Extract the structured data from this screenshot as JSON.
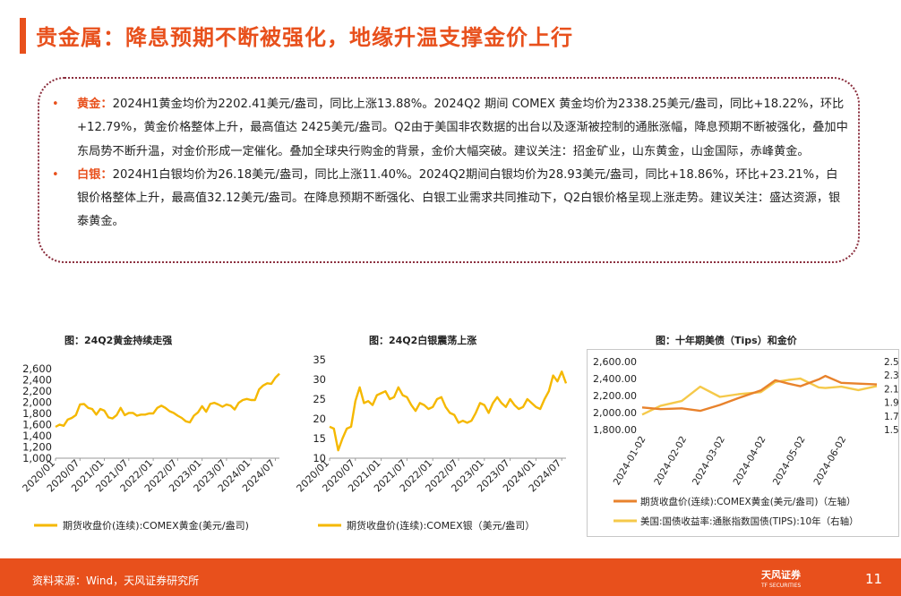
{
  "page": {
    "title": "贵金属：降息预期不断被强化，地缘升温支撑金价上行",
    "page_number": "11"
  },
  "bullets": [
    {
      "key": "黄金：",
      "text": "2024H1黄金均价为2202.41美元/盎司，同比上涨13.88%。2024Q2 期间 COMEX 黄金均价为2338.25美元/盎司，同比+18.22%，环比+12.79%，黄金价格整体上升，最高值达 2425美元/盎司。Q2由于美国非农数据的出台以及逐渐被控制的通胀涨幅，降息预期不断被强化，叠加中东局势不断升温，对金价形成一定催化。叠加全球央行购金的背景，金价大幅突破。建议关注：招金矿业，山东黄金，山金国际，赤峰黄金。"
    },
    {
      "key": "白银：",
      "text": "2024H1白银均价为26.18美元/盎司，同比上涨11.40%。2024Q2期间白银均价为28.93美元/盎司，同比+18.86%，环比+23.21%，白银价格整体上升，最高值32.12美元/盎司。在降息预期不断强化、白银工业需求共同推动下，Q2白银价格呈现上涨走势。建议关注：盛达资源，银泰黄金。"
    }
  ],
  "footer": {
    "source": "资料来源：Wind，天风证券研究所",
    "logo": "天风证券",
    "logo_en": "TF SECURITIES"
  },
  "chart_data": [
    {
      "type": "line",
      "title": "图：24Q2黄金持续走强",
      "x_tick_labels": [
        "2020/01",
        "2020/07",
        "2021/01",
        "2021/07",
        "2022/01",
        "2022/07",
        "2023/01",
        "2023/07",
        "2024/01",
        "2024/07"
      ],
      "y_tick_labels": [
        "1,000",
        "1,200",
        "1,400",
        "1,600",
        "1,800",
        "2,000",
        "2,200",
        "2,400",
        "2,600"
      ],
      "ylim": [
        1000,
        2600
      ],
      "series": [
        {
          "name": "期货收盘价(连续):COMEX黄金(美元/盎司)",
          "color": "#f5b800",
          "x": [
            "2020/01",
            "2020/02",
            "2020/03",
            "2020/04",
            "2020/05",
            "2020/06",
            "2020/07",
            "2020/08",
            "2020/09",
            "2020/10",
            "2020/11",
            "2020/12",
            "2021/01",
            "2021/02",
            "2021/03",
            "2021/04",
            "2021/05",
            "2021/06",
            "2021/07",
            "2021/08",
            "2021/09",
            "2021/10",
            "2021/11",
            "2021/12",
            "2022/01",
            "2022/02",
            "2022/03",
            "2022/04",
            "2022/05",
            "2022/06",
            "2022/07",
            "2022/08",
            "2022/09",
            "2022/10",
            "2022/11",
            "2022/12",
            "2023/01",
            "2023/02",
            "2023/03",
            "2023/04",
            "2023/05",
            "2023/06",
            "2023/07",
            "2023/08",
            "2023/09",
            "2023/10",
            "2023/11",
            "2023/12",
            "2024/01",
            "2024/02",
            "2024/03",
            "2024/04",
            "2024/05",
            "2024/06",
            "2024/07",
            "2024/08"
          ],
          "values": [
            1560,
            1600,
            1580,
            1690,
            1720,
            1770,
            1960,
            1970,
            1900,
            1880,
            1780,
            1880,
            1850,
            1730,
            1710,
            1770,
            1900,
            1770,
            1810,
            1810,
            1760,
            1780,
            1780,
            1800,
            1800,
            1900,
            1940,
            1900,
            1840,
            1810,
            1760,
            1720,
            1660,
            1640,
            1760,
            1820,
            1930,
            1830,
            1970,
            1990,
            1960,
            1920,
            1960,
            1940,
            1870,
            1990,
            2040,
            2060,
            2040,
            2040,
            2230,
            2300,
            2340,
            2330,
            2440,
            2510
          ]
        }
      ]
    },
    {
      "type": "line",
      "title": "图：24Q2白银震荡上涨",
      "x_tick_labels": [
        "2020/01",
        "2020/07",
        "2021/01",
        "2021/07",
        "2022/01",
        "2022/07",
        "2023/01",
        "2023/07",
        "2024/01",
        "2024/07"
      ],
      "y_tick_labels": [
        "10",
        "15",
        "20",
        "25",
        "30",
        "35"
      ],
      "ylim": [
        10,
        35
      ],
      "series": [
        {
          "name": "期货收盘价(连续):COMEX银（美元/盎司）",
          "color": "#f5b800",
          "x": [
            "2020/01",
            "2020/02",
            "2020/03",
            "2020/04",
            "2020/05",
            "2020/06",
            "2020/07",
            "2020/08",
            "2020/09",
            "2020/10",
            "2020/11",
            "2020/12",
            "2021/01",
            "2021/02",
            "2021/03",
            "2021/04",
            "2021/05",
            "2021/06",
            "2021/07",
            "2021/08",
            "2021/09",
            "2021/10",
            "2021/11",
            "2021/12",
            "2022/01",
            "2022/02",
            "2022/03",
            "2022/04",
            "2022/05",
            "2022/06",
            "2022/07",
            "2022/08",
            "2022/09",
            "2022/10",
            "2022/11",
            "2022/12",
            "2023/01",
            "2023/02",
            "2023/03",
            "2023/04",
            "2023/05",
            "2023/06",
            "2023/07",
            "2023/08",
            "2023/09",
            "2023/10",
            "2023/11",
            "2023/12",
            "2024/01",
            "2024/02",
            "2024/03",
            "2024/04",
            "2024/05",
            "2024/06",
            "2024/07",
            "2024/08"
          ],
          "values": [
            18,
            17.5,
            12,
            15,
            17.5,
            18,
            24.5,
            28,
            24,
            24.5,
            23.5,
            26,
            26.5,
            27,
            25,
            25.5,
            28,
            26,
            25.5,
            23.5,
            22,
            24,
            23.5,
            22.5,
            23,
            25,
            25.5,
            23,
            21.5,
            21,
            19,
            19.5,
            19,
            19.5,
            21.5,
            24,
            23.5,
            21.5,
            24,
            25.5,
            24,
            23,
            25,
            23.5,
            22.5,
            23,
            25,
            24,
            23,
            22.5,
            25,
            27,
            31,
            29.5,
            32,
            29
          ]
        }
      ]
    },
    {
      "type": "line",
      "title": "图：十年期美债（Tips）和金价",
      "x_tick_labels": [
        "2024-01-02",
        "2024-02-02",
        "2024-03-02",
        "2024-04-02",
        "2024-05-02",
        "2024-06-02"
      ],
      "y_left_tick_labels": [
        "1,800.00",
        "2,000.00",
        "2,200.00",
        "2,400.00",
        "2,600.00"
      ],
      "y_right_tick_labels": [
        "1.5",
        "1.7",
        "1.9",
        "2.1",
        "2.3",
        "2.5"
      ],
      "ylim_left": [
        1800,
        2600
      ],
      "ylim_right": [
        1.5,
        2.5
      ],
      "series": [
        {
          "name": "期货收盘价(连续):COMEX黄金(美元/盎司)",
          "axis_label": "（左轴）",
          "color": "#e8822c",
          "x": [
            "2024-01-02",
            "2024-01-16",
            "2024-02-01",
            "2024-02-15",
            "2024-03-01",
            "2024-03-15",
            "2024-04-01",
            "2024-04-12",
            "2024-04-22",
            "2024-05-01",
            "2024-05-15",
            "2024-05-20",
            "2024-06-01",
            "2024-06-14",
            "2024-06-28"
          ],
          "values": [
            2060,
            2040,
            2050,
            2020,
            2090,
            2170,
            2260,
            2380,
            2340,
            2310,
            2390,
            2430,
            2350,
            2340,
            2330
          ]
        },
        {
          "name": "美国:国债收益率:通胀指数国债(TIPS):10年",
          "axis_label": "（右轴）",
          "color": "#f5c94a",
          "x": [
            "2024-01-02",
            "2024-01-16",
            "2024-02-01",
            "2024-02-15",
            "2024-03-01",
            "2024-03-15",
            "2024-04-01",
            "2024-04-12",
            "2024-04-22",
            "2024-05-01",
            "2024-05-15",
            "2024-05-20",
            "2024-06-01",
            "2024-06-14",
            "2024-06-28"
          ],
          "values": [
            1.72,
            1.85,
            1.92,
            2.13,
            1.98,
            2.02,
            2.05,
            2.2,
            2.23,
            2.25,
            2.12,
            2.11,
            2.13,
            2.08,
            2.14
          ]
        }
      ]
    }
  ]
}
